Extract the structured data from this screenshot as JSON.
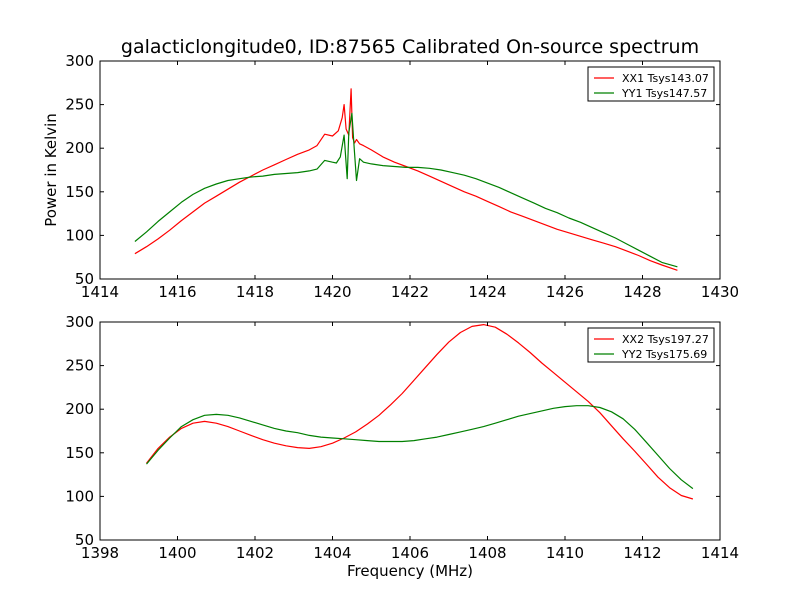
{
  "chart_data": [
    {
      "type": "line",
      "title": "galacticlongitude0, ID:87565 Calibrated On-source spectrum",
      "xlabel": "",
      "ylabel": "Power in Kelvin",
      "xlim": [
        1414,
        1430
      ],
      "ylim": [
        50,
        300
      ],
      "xticks": [
        1414,
        1416,
        1418,
        1420,
        1422,
        1424,
        1426,
        1428,
        1430
      ],
      "yticks": [
        50,
        100,
        150,
        200,
        250,
        300
      ],
      "grid": false,
      "legend": "top-right",
      "series": [
        {
          "name": "XX1 Tsys143.07",
          "color": "#ff0000",
          "x": [
            1414.9,
            1415.2,
            1415.5,
            1415.8,
            1416.1,
            1416.4,
            1416.7,
            1417.0,
            1417.3,
            1417.6,
            1417.9,
            1418.2,
            1418.5,
            1418.8,
            1419.1,
            1419.4,
            1419.6,
            1419.8,
            1420.0,
            1420.15,
            1420.25,
            1420.3,
            1420.35,
            1420.42,
            1420.48,
            1420.52,
            1420.57,
            1420.62,
            1420.7,
            1420.8,
            1421.0,
            1421.3,
            1421.6,
            1421.9,
            1422.2,
            1422.5,
            1422.8,
            1423.1,
            1423.4,
            1423.7,
            1424.0,
            1424.3,
            1424.6,
            1424.9,
            1425.2,
            1425.5,
            1425.8,
            1426.1,
            1426.4,
            1426.7,
            1427.0,
            1427.3,
            1427.6,
            1427.9,
            1428.2,
            1428.5,
            1428.9
          ],
          "y": [
            79,
            87,
            96,
            106,
            117,
            127,
            137,
            145,
            153,
            161,
            168,
            175,
            181,
            187,
            193,
            198,
            203,
            216,
            214,
            220,
            235,
            250,
            222,
            215,
            268,
            212,
            206,
            210,
            205,
            203,
            198,
            190,
            184,
            179,
            174,
            168,
            162,
            156,
            150,
            145,
            139,
            133,
            127,
            122,
            117,
            112,
            107,
            103,
            99,
            95,
            91,
            87,
            82,
            77,
            71,
            66,
            60
          ]
        },
        {
          "name": "YY1 Tsys147.57",
          "color": "#008000",
          "x": [
            1414.9,
            1415.2,
            1415.5,
            1415.8,
            1416.1,
            1416.4,
            1416.7,
            1417.0,
            1417.3,
            1417.6,
            1417.9,
            1418.2,
            1418.5,
            1418.8,
            1419.1,
            1419.4,
            1419.6,
            1419.8,
            1420.0,
            1420.1,
            1420.2,
            1420.3,
            1420.38,
            1420.42,
            1420.5,
            1420.56,
            1420.62,
            1420.7,
            1420.8,
            1421.0,
            1421.3,
            1421.6,
            1421.9,
            1422.2,
            1422.5,
            1422.8,
            1423.1,
            1423.4,
            1423.7,
            1424.0,
            1424.3,
            1424.6,
            1424.9,
            1425.2,
            1425.5,
            1425.8,
            1426.1,
            1426.4,
            1426.7,
            1427.0,
            1427.3,
            1427.6,
            1427.9,
            1428.2,
            1428.5,
            1428.9
          ],
          "y": [
            93,
            104,
            116,
            127,
            138,
            147,
            154,
            159,
            163,
            165,
            167,
            168,
            170,
            171,
            172,
            174,
            176,
            186,
            184,
            183,
            190,
            215,
            165,
            218,
            240,
            200,
            163,
            188,
            184,
            182,
            180,
            179,
            178,
            178,
            177,
            175,
            172,
            169,
            165,
            160,
            155,
            149,
            143,
            137,
            131,
            126,
            120,
            115,
            109,
            103,
            97,
            90,
            83,
            76,
            69,
            64
          ]
        }
      ]
    },
    {
      "type": "line",
      "title": "",
      "xlabel": "Frequency (MHz)",
      "ylabel": "",
      "xlim": [
        1398,
        1414
      ],
      "ylim": [
        50,
        300
      ],
      "xticks": [
        1398,
        1400,
        1402,
        1404,
        1406,
        1408,
        1410,
        1412,
        1414
      ],
      "yticks": [
        50,
        100,
        150,
        200,
        250,
        300
      ],
      "grid": false,
      "legend": "top-right",
      "series": [
        {
          "name": "XX2 Tsys197.27",
          "color": "#ff0000",
          "x": [
            1399.2,
            1399.5,
            1399.8,
            1400.1,
            1400.4,
            1400.7,
            1401.0,
            1401.3,
            1401.6,
            1401.9,
            1402.2,
            1402.5,
            1402.8,
            1403.1,
            1403.4,
            1403.7,
            1404.0,
            1404.3,
            1404.6,
            1404.9,
            1405.2,
            1405.5,
            1405.8,
            1406.1,
            1406.4,
            1406.7,
            1407.0,
            1407.3,
            1407.6,
            1407.9,
            1408.2,
            1408.5,
            1408.8,
            1409.1,
            1409.4,
            1409.7,
            1410.0,
            1410.3,
            1410.6,
            1410.9,
            1411.2,
            1411.5,
            1411.8,
            1412.1,
            1412.4,
            1412.7,
            1413.0,
            1413.3
          ],
          "y": [
            138,
            155,
            168,
            178,
            184,
            186,
            184,
            180,
            175,
            170,
            165,
            161,
            158,
            156,
            155,
            157,
            161,
            167,
            174,
            183,
            193,
            205,
            218,
            233,
            248,
            263,
            277,
            288,
            295,
            297,
            294,
            286,
            276,
            265,
            253,
            242,
            231,
            220,
            209,
            196,
            181,
            166,
            152,
            137,
            122,
            110,
            101,
            97
          ]
        },
        {
          "name": "YY2 Tsys175.69",
          "color": "#008000",
          "x": [
            1399.2,
            1399.5,
            1399.8,
            1400.1,
            1400.4,
            1400.7,
            1401.0,
            1401.3,
            1401.6,
            1401.9,
            1402.2,
            1402.5,
            1402.8,
            1403.1,
            1403.4,
            1403.7,
            1404.0,
            1404.3,
            1404.6,
            1404.9,
            1405.2,
            1405.5,
            1405.8,
            1406.1,
            1406.4,
            1406.7,
            1407.0,
            1407.3,
            1407.6,
            1407.9,
            1408.2,
            1408.5,
            1408.8,
            1409.1,
            1409.4,
            1409.7,
            1410.0,
            1410.3,
            1410.6,
            1410.9,
            1411.2,
            1411.5,
            1411.8,
            1412.1,
            1412.4,
            1412.7,
            1413.0,
            1413.3
          ],
          "y": [
            137,
            153,
            167,
            180,
            188,
            193,
            194,
            193,
            190,
            186,
            182,
            178,
            175,
            173,
            170,
            168,
            167,
            166,
            165,
            164,
            163,
            163,
            163,
            164,
            166,
            168,
            171,
            174,
            177,
            180,
            184,
            188,
            192,
            195,
            198,
            201,
            203,
            204,
            204,
            202,
            197,
            189,
            177,
            162,
            147,
            132,
            119,
            109
          ]
        }
      ]
    }
  ]
}
